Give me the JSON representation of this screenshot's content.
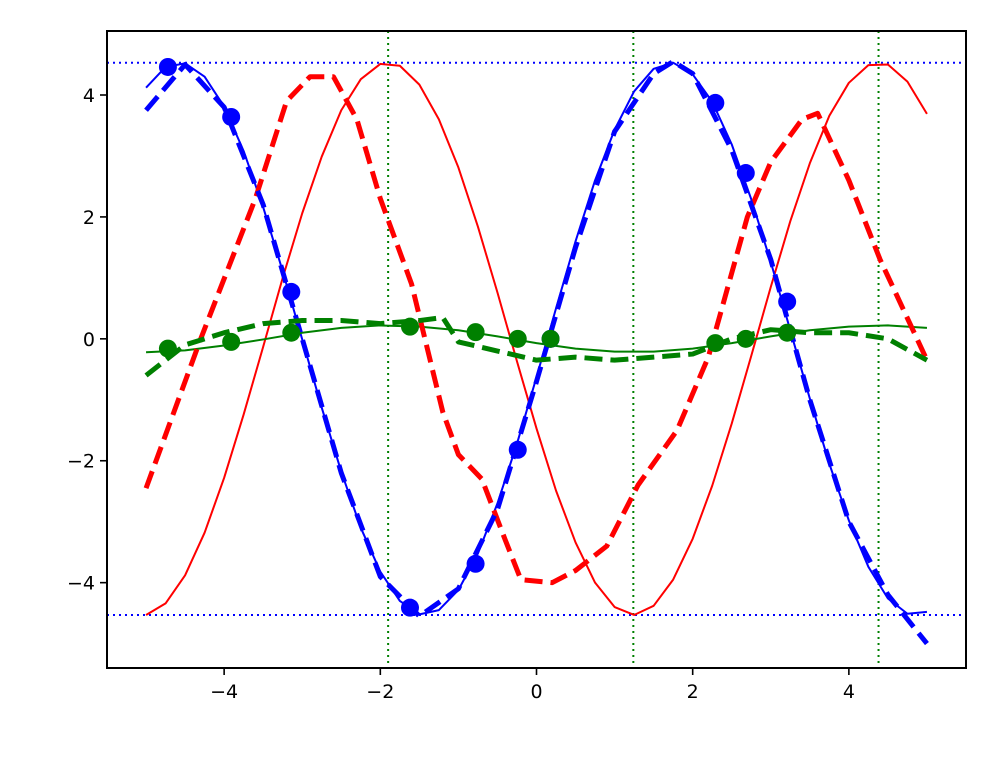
{
  "chart_data": {
    "type": "line",
    "xlim": [
      -5.5,
      5.5
    ],
    "ylim": [
      -5.4,
      5.05
    ],
    "xticks": [
      {
        "value": -4,
        "label": "−4"
      },
      {
        "value": -2,
        "label": "−2"
      },
      0,
      2,
      4
    ],
    "yticks": [
      {
        "value": -4,
        "label": "−4"
      },
      {
        "value": -2,
        "label": "−2"
      },
      0,
      2,
      4
    ],
    "hlines": {
      "values": [
        4.53,
        -4.53
      ],
      "color": "#0000ff",
      "style": "dotted"
    },
    "vlines": {
      "values": [
        -1.9,
        1.24,
        4.38
      ],
      "color": "#008000",
      "style": "dotted"
    },
    "series": [
      {
        "color": "#ff0000",
        "style": "solid",
        "x": [
          -5,
          -4.75,
          -4.5,
          -4.25,
          -4,
          -3.75,
          -3.5,
          -3.25,
          -3,
          -2.75,
          -2.5,
          -2.25,
          -2,
          -1.75,
          -1.5,
          -1.25,
          -1,
          -0.75,
          -0.5,
          -0.25,
          0,
          0.25,
          0.5,
          0.75,
          1,
          1.25,
          1.5,
          1.75,
          2,
          2.25,
          2.5,
          2.75,
          3,
          3.25,
          3.5,
          3.75,
          4,
          4.25,
          4.5,
          4.75,
          5
        ],
        "values": [
          -4.53,
          -4.34,
          -3.88,
          -3.18,
          -2.28,
          -1.24,
          -0.13,
          1.0,
          2.06,
          2.99,
          3.75,
          4.26,
          4.51,
          4.48,
          4.17,
          3.6,
          2.81,
          1.84,
          0.76,
          -0.37,
          -1.47,
          -2.49,
          -3.34,
          -4.0,
          -4.4,
          -4.53,
          -4.38,
          -3.95,
          -3.28,
          -2.41,
          -1.39,
          -0.28,
          0.85,
          1.93,
          2.88,
          3.66,
          4.2,
          4.49,
          4.5,
          4.22,
          3.69
        ]
      },
      {
        "color": "#0000ff",
        "style": "solid",
        "x": [
          -5,
          -4.75,
          -4.5,
          -4.25,
          -4,
          -3.75,
          -3.5,
          -3.25,
          -3,
          -2.75,
          -2.5,
          -2.25,
          -2,
          -1.75,
          -1.5,
          -1.25,
          -1,
          -0.75,
          -0.5,
          -0.25,
          0,
          0.25,
          0.5,
          0.75,
          1,
          1.25,
          1.5,
          1.75,
          2,
          2.25,
          2.5,
          2.75,
          3,
          3.25,
          3.5,
          3.75,
          4,
          4.25,
          4.5,
          4.75,
          5
        ],
        "values": [
          4.12,
          4.46,
          4.52,
          4.3,
          3.81,
          3.08,
          2.16,
          1.11,
          -0.01,
          -1.13,
          -2.18,
          -3.1,
          -3.82,
          -4.3,
          -4.52,
          -4.45,
          -4.12,
          -3.52,
          -2.7,
          -1.72,
          -0.63,
          0.5,
          1.6,
          2.6,
          3.43,
          4.06,
          4.43,
          4.53,
          4.34,
          3.89,
          3.19,
          2.29,
          1.26,
          0.14,
          -0.98,
          -2.05,
          -2.98,
          -3.74,
          -4.26,
          -4.51,
          -4.48
        ]
      },
      {
        "color": "#008000",
        "style": "solid",
        "x": [
          -5,
          -4.5,
          -4,
          -3.5,
          -3,
          -2.5,
          -2,
          -1.5,
          -1,
          -0.5,
          0,
          0.5,
          1,
          1.5,
          2,
          2.5,
          3,
          3.5,
          4,
          4.5,
          5
        ],
        "values": [
          -0.22,
          -0.19,
          -0.11,
          -0.01,
          0.1,
          0.18,
          0.22,
          0.2,
          0.14,
          0.04,
          -0.07,
          -0.16,
          -0.21,
          -0.21,
          -0.16,
          -0.07,
          0.04,
          0.14,
          0.2,
          0.22,
          0.18
        ]
      },
      {
        "color": "#ff0000",
        "style": "dashed",
        "x": [
          -5,
          -4.3,
          -3.6,
          -3.2,
          -2.9,
          -2.6,
          -2.3,
          -2.0,
          -1.6,
          -1.2,
          -1.0,
          -0.7,
          -0.4,
          -0.2,
          0.2,
          0.5,
          0.9,
          1.3,
          1.8,
          2.2,
          2.7,
          3.0,
          3.4,
          3.6,
          4.0,
          4.4,
          5
        ],
        "values": [
          -2.45,
          0,
          2.3,
          3.9,
          4.3,
          4.3,
          3.6,
          2.3,
          0.9,
          -1.2,
          -1.9,
          -2.3,
          -3.3,
          -3.95,
          -4.0,
          -3.8,
          -3.4,
          -2.4,
          -1.5,
          -0.3,
          2.0,
          2.9,
          3.6,
          3.7,
          2.6,
          1.3,
          -0.35
        ]
      },
      {
        "color": "#0000ff",
        "style": "dashed",
        "x": [
          -5,
          -4.5,
          -4,
          -3.5,
          -3,
          -2.5,
          -2,
          -1.5,
          -1,
          -0.5,
          0,
          0.5,
          1,
          1.5,
          1.75,
          2,
          2.5,
          3,
          3.5,
          4,
          4.5,
          5
        ],
        "values": [
          3.75,
          4.5,
          3.8,
          2.2,
          0.0,
          -2.2,
          -3.9,
          -4.55,
          -4.1,
          -2.8,
          -0.7,
          1.5,
          3.4,
          4.35,
          4.55,
          4.35,
          3.1,
          1.3,
          -1.0,
          -3.0,
          -4.2,
          -5.0
        ]
      },
      {
        "color": "#008000",
        "style": "dashed",
        "x": [
          -5,
          -4.5,
          -4,
          -3.5,
          -3,
          -2.5,
          -2,
          -1.5,
          -1.2,
          -1,
          -0.5,
          0,
          0.5,
          1,
          1.5,
          2,
          2.5,
          3,
          3.5,
          4,
          4.5,
          5
        ],
        "values": [
          -0.6,
          -0.1,
          0.1,
          0.25,
          0.3,
          0.3,
          0.25,
          0.3,
          0.35,
          -0.05,
          -0.2,
          -0.35,
          -0.3,
          -0.35,
          -0.3,
          -0.25,
          0.0,
          0.15,
          0.1,
          0.1,
          0.0,
          -0.35
        ]
      },
      {
        "color": "#0000ff",
        "style": "markers",
        "x": [
          -4.72,
          -3.91,
          -3.14,
          -1.62,
          -0.78,
          -0.24,
          0.18,
          2.29,
          2.68,
          3.21
        ],
        "values": [
          4.46,
          3.64,
          0.77,
          -4.41,
          -3.69,
          -1.82,
          0.0,
          3.87,
          2.72,
          0.61
        ]
      },
      {
        "color": "#008000",
        "style": "markers",
        "x": [
          -4.72,
          -3.91,
          -3.14,
          -1.62,
          -0.78,
          -0.24,
          0.18,
          2.29,
          2.68,
          3.21
        ],
        "values": [
          -0.16,
          -0.05,
          0.1,
          0.2,
          0.11,
          0.0,
          0.0,
          -0.07,
          0.0,
          0.1
        ]
      }
    ]
  }
}
